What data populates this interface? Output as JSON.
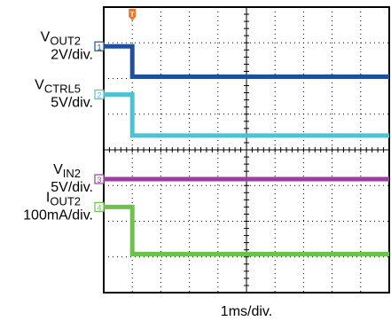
{
  "chart_data": {
    "type": "line",
    "x_scale_label": "1ms/div.",
    "x_divisions": 10,
    "y_divisions": 8,
    "x_range_div": [
      -1,
      9
    ],
    "trigger_marker": "T",
    "trigger_color": "#e8782c",
    "grid": "dotted",
    "series": [
      {
        "id": "ch1",
        "channel": "1",
        "name": "V",
        "name_sub": "OUT2",
        "scale": "2V/div.",
        "color": "#1f4fa0",
        "x_div": [
          -1,
          0,
          0,
          9
        ],
        "y_div": [
          6.9,
          6.9,
          6.05,
          6.05
        ]
      },
      {
        "id": "ch2",
        "channel": "2",
        "name": "V",
        "name_sub": "CTRL5",
        "scale": "5V/div.",
        "color": "#4cc3d4",
        "x_div": [
          -1,
          0,
          0,
          9
        ],
        "y_div": [
          5.55,
          5.55,
          4.4,
          4.4
        ]
      },
      {
        "id": "ch3",
        "channel": "3",
        "name": "V",
        "name_sub": "IN2",
        "scale": "5V/div.",
        "color": "#9b3d9e",
        "x_div": [
          -1,
          9
        ],
        "y_div": [
          3.18,
          3.18
        ]
      },
      {
        "id": "ch4",
        "channel": "4",
        "name": "I",
        "name_sub": "OUT2",
        "scale": "100mA/div.",
        "color": "#6cc24a",
        "x_div": [
          -1,
          0,
          0,
          9
        ],
        "y_div": [
          2.4,
          2.4,
          1.08,
          1.08
        ]
      }
    ]
  }
}
